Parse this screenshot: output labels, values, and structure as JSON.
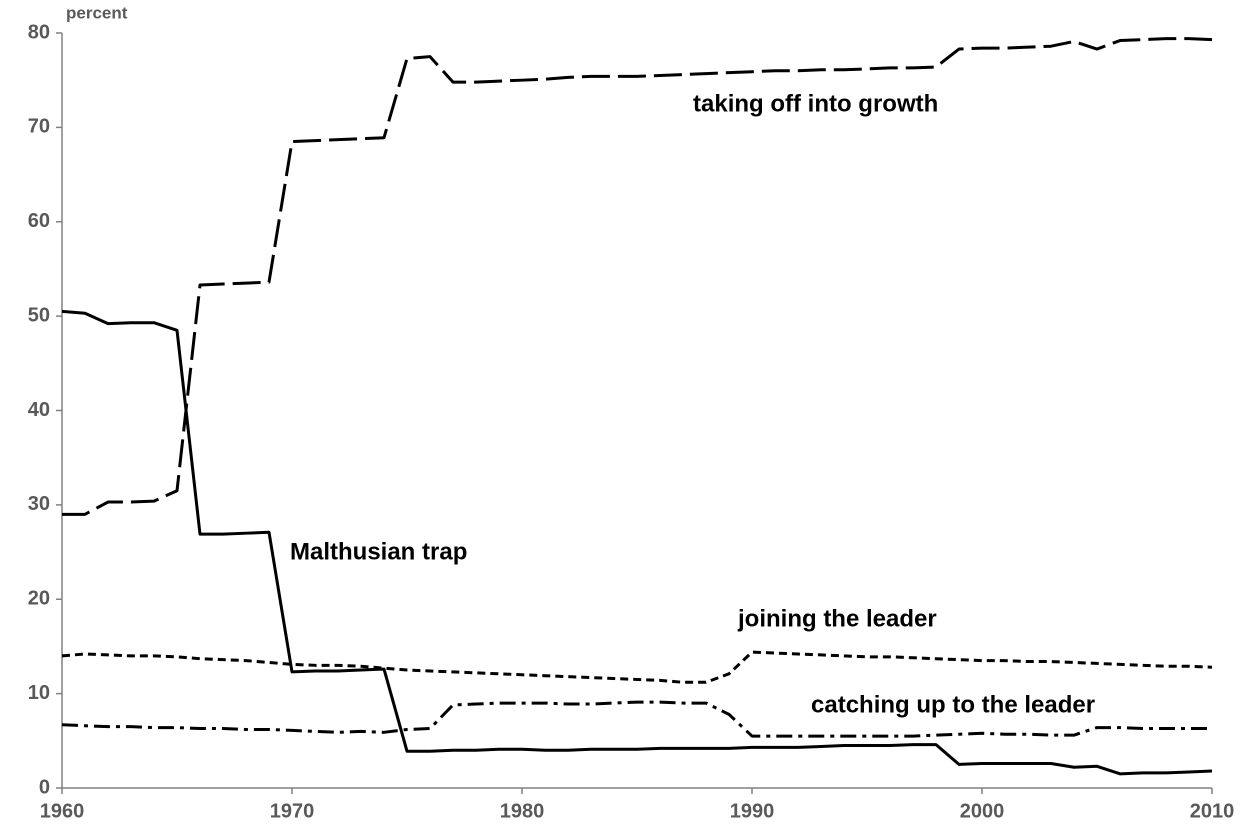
{
  "chart_data": {
    "type": "line",
    "ylabel": "percent",
    "x": [
      1960,
      1961,
      1962,
      1963,
      1964,
      1965,
      1966,
      1967,
      1968,
      1969,
      1970,
      1971,
      1972,
      1973,
      1974,
      1975,
      1976,
      1977,
      1978,
      1979,
      1980,
      1981,
      1982,
      1983,
      1984,
      1985,
      1986,
      1987,
      1988,
      1989,
      1990,
      1991,
      1992,
      1993,
      1994,
      1995,
      1996,
      1997,
      1998,
      1999,
      2000,
      2001,
      2002,
      2003,
      2004,
      2005,
      2006,
      2007,
      2008,
      2009,
      2010
    ],
    "series": [
      {
        "name": "taking off into growth",
        "color": "#000000",
        "dash": "28,8",
        "values": [
          29.0,
          29.0,
          30.3,
          30.3,
          30.4,
          31.5,
          53.3,
          53.4,
          53.5,
          53.6,
          68.5,
          68.6,
          68.7,
          68.8,
          68.9,
          77.3,
          77.5,
          74.8,
          74.8,
          74.9,
          75.0,
          75.1,
          75.3,
          75.4,
          75.4,
          75.4,
          75.5,
          75.6,
          75.7,
          75.8,
          75.9,
          76.0,
          76.0,
          76.1,
          76.1,
          76.2,
          76.3,
          76.3,
          76.4,
          78.3,
          78.4,
          78.4,
          78.5,
          78.6,
          79.1,
          78.3,
          79.2,
          79.3,
          79.4,
          79.4,
          79.3
        ]
      },
      {
        "name": "Malthusian trap",
        "color": "#000000",
        "dash": "none",
        "values": [
          50.5,
          50.3,
          49.2,
          49.3,
          49.3,
          48.5,
          26.9,
          26.9,
          27.0,
          27.1,
          12.3,
          12.4,
          12.4,
          12.5,
          12.6,
          3.9,
          3.9,
          4.0,
          4.0,
          4.1,
          4.1,
          4.0,
          4.0,
          4.1,
          4.1,
          4.1,
          4.2,
          4.2,
          4.2,
          4.2,
          4.3,
          4.3,
          4.3,
          4.4,
          4.5,
          4.5,
          4.5,
          4.6,
          4.6,
          2.5,
          2.6,
          2.6,
          2.6,
          2.6,
          2.2,
          2.3,
          1.5,
          1.6,
          1.6,
          1.7,
          1.8
        ]
      },
      {
        "name": "joining the leader",
        "color": "#000000",
        "dash": "8,5",
        "values": [
          14.0,
          14.2,
          14.1,
          14.0,
          14.0,
          13.9,
          13.7,
          13.6,
          13.5,
          13.3,
          13.1,
          13.0,
          13.0,
          12.9,
          12.7,
          12.5,
          12.4,
          12.3,
          12.2,
          12.1,
          12.0,
          11.9,
          11.8,
          11.7,
          11.6,
          11.5,
          11.4,
          11.2,
          11.2,
          12.1,
          14.4,
          14.3,
          14.2,
          14.1,
          14.0,
          13.9,
          13.9,
          13.8,
          13.7,
          13.6,
          13.5,
          13.5,
          13.4,
          13.4,
          13.3,
          13.2,
          13.1,
          13.0,
          12.9,
          12.9,
          12.8
        ]
      },
      {
        "name": "catching up to the leader",
        "color": "#000000",
        "dash": "16,6,4,6",
        "values": [
          6.7,
          6.6,
          6.5,
          6.5,
          6.4,
          6.4,
          6.3,
          6.3,
          6.2,
          6.2,
          6.1,
          6.0,
          5.9,
          6.0,
          5.9,
          6.2,
          6.3,
          8.8,
          8.9,
          9.0,
          9.0,
          9.0,
          8.9,
          8.9,
          9.0,
          9.1,
          9.1,
          9.0,
          9.0,
          7.8,
          5.5,
          5.5,
          5.5,
          5.5,
          5.5,
          5.5,
          5.5,
          5.5,
          5.6,
          5.7,
          5.8,
          5.7,
          5.7,
          5.6,
          5.6,
          6.4,
          6.4,
          6.3,
          6.3,
          6.3,
          6.3
        ]
      }
    ],
    "xlim": [
      1960,
      2010
    ],
    "xticks": [
      1960,
      1970,
      1980,
      1990,
      2000,
      2010
    ],
    "ylim": [
      0,
      80
    ],
    "yticks": [
      0,
      10,
      20,
      30,
      40,
      50,
      60,
      70,
      80
    ],
    "grid": false
  }
}
